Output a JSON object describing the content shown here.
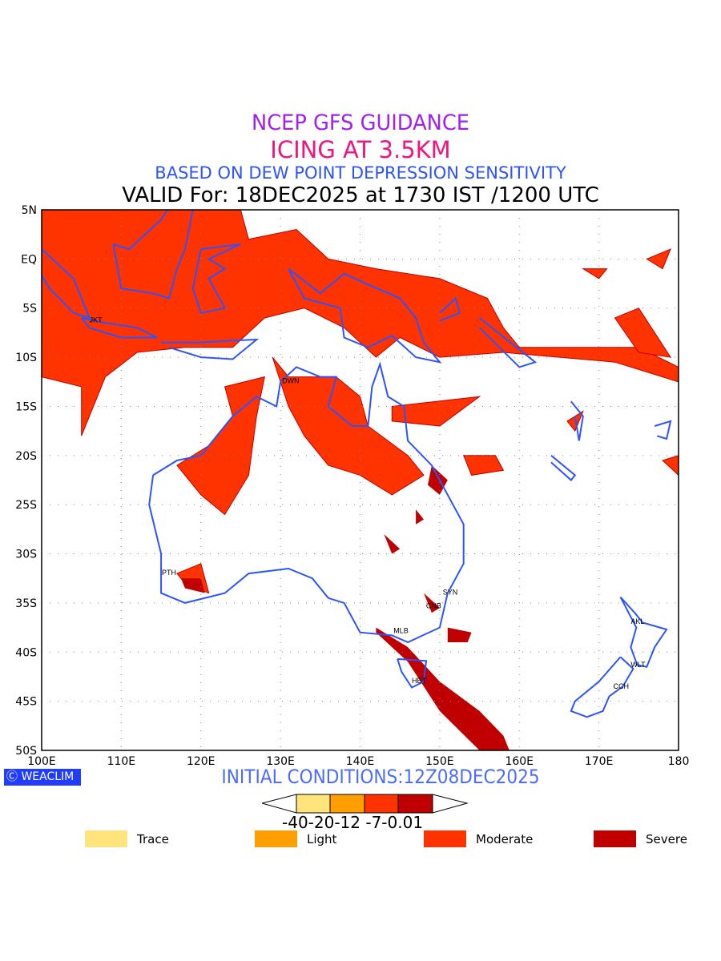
{
  "header": {
    "line1": "NCEP GFS GUIDANCE",
    "line2": "ICING AT 3.5KM",
    "line3": "BASED ON DEW POINT DEPRESSION SENSITIVITY",
    "line4": "VALID For: 18DEC2025 at 1730 IST /1200 UTC"
  },
  "map": {
    "lon_labels": [
      "100E",
      "110E",
      "120E",
      "130E",
      "140E",
      "150E",
      "160E",
      "170E",
      "180"
    ],
    "lat_labels": [
      "5N",
      "EQ",
      "5S",
      "10S",
      "15S",
      "20S",
      "25S",
      "30S",
      "35S",
      "40S",
      "45S",
      "50S"
    ],
    "cities": [
      {
        "name": "JKT",
        "lon": 106.8,
        "lat": -6.2
      },
      {
        "name": "DWN",
        "lon": 131,
        "lat": -12.4
      },
      {
        "name": "PTH",
        "lon": 115.9,
        "lat": -31.9
      },
      {
        "name": "SYN",
        "lon": 151.2,
        "lat": -33.9
      },
      {
        "name": "CNB",
        "lon": 149.1,
        "lat": -35.3
      },
      {
        "name": "MLB",
        "lon": 145,
        "lat": -37.8
      },
      {
        "name": "HBT",
        "lon": 147.3,
        "lat": -42.9
      },
      {
        "name": "AKL",
        "lon": 174.8,
        "lat": -36.9
      },
      {
        "name": "WLT",
        "lon": 174.8,
        "lat": -41.3
      },
      {
        "name": "CCH",
        "lon": 172.6,
        "lat": -43.5
      }
    ]
  },
  "footer": {
    "logo": "WEACLIM",
    "initial": "INITIAL CONDITIONS:12Z08DEC2025",
    "ticks": "-40-20-12 -7-0.01"
  },
  "legend": [
    {
      "label": "Trace",
      "color": "#fee47a"
    },
    {
      "label": "Light",
      "color": "#ff9e00"
    },
    {
      "label": "Moderate",
      "color": "#ff3300"
    },
    {
      "label": "Severe",
      "color": "#c00000"
    }
  ],
  "colors": {
    "coast": "#2b54ff",
    "moderate": "#ff3300",
    "severe": "#c00000"
  }
}
